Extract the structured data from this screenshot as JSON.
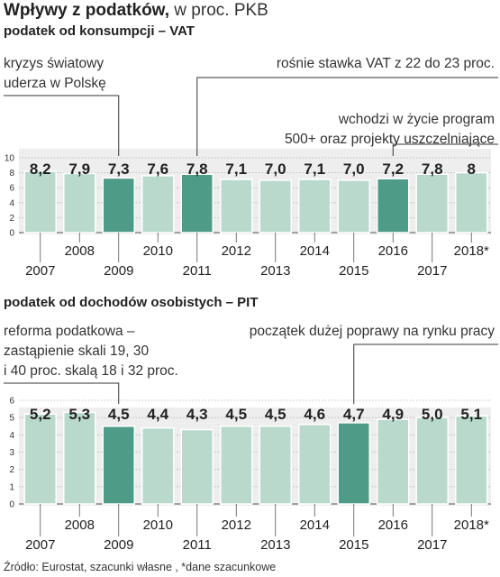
{
  "title_bold": "Wpływy z podatków,",
  "title_light": " w proc. PKB",
  "source": "Źródło: Eurostat, szacunki własne , *dane szacunkowe",
  "colors": {
    "bar": "#b8d9cc",
    "highlight": "#4e9c88",
    "band": "#eeeeee",
    "grid": "#b0b0b0",
    "text": "#222222"
  },
  "chart_data": [
    {
      "type": "bar",
      "title": "podatek od konsumpcji – VAT",
      "categories": [
        "2007",
        "2008",
        "2009",
        "2010",
        "2011",
        "2012",
        "2013",
        "2014",
        "2015",
        "2016",
        "2017",
        "2018*"
      ],
      "values": [
        8.2,
        7.9,
        7.3,
        7.6,
        7.8,
        7.1,
        7.0,
        7.1,
        7.0,
        7.2,
        7.8,
        8.0
      ],
      "value_labels": [
        "8,2",
        "7,9",
        "7,3",
        "7,6",
        "7,8",
        "7,1",
        "7,0",
        "7,1",
        "7,0",
        "7,2",
        "7,8",
        "8"
      ],
      "highlight": [
        "2009",
        "2011",
        "2016"
      ],
      "ylim": [
        0,
        10
      ],
      "yticks": [
        0,
        2,
        4,
        6,
        8,
        10
      ],
      "grid": true,
      "annotations": [
        {
          "text": "kryzys światowy\nuderza w Polskę",
          "category": "2009"
        },
        {
          "text": "rośnie stawka VAT z 22 do 23 proc.",
          "category": "2011"
        },
        {
          "text": "wchodzi w życie program\n500+ oraz projekty uszczelniające",
          "category": "2016"
        }
      ]
    },
    {
      "type": "bar",
      "title": "podatek od dochodów osobistych – PIT",
      "categories": [
        "2007",
        "2008",
        "2009",
        "2010",
        "2011",
        "2012",
        "2013",
        "2014",
        "2015",
        "2016",
        "2017",
        "2018*"
      ],
      "values": [
        5.2,
        5.3,
        4.5,
        4.4,
        4.3,
        4.5,
        4.5,
        4.6,
        4.7,
        4.9,
        5.0,
        5.1
      ],
      "value_labels": [
        "5,2",
        "5,3",
        "4,5",
        "4,4",
        "4,3",
        "4,5",
        "4,5",
        "4,6",
        "4,7",
        "4,9",
        "5,0",
        "5,1"
      ],
      "highlight": [
        "2009",
        "2015"
      ],
      "ylim": [
        0,
        6
      ],
      "yticks": [
        0,
        1,
        2,
        3,
        4,
        5,
        6
      ],
      "grid": true,
      "annotations": [
        {
          "text": "reforma podatkowa –\nzastąpienie skali 19, 30\ni 40 proc. skalą 18 i 32 proc.",
          "category": "2009"
        },
        {
          "text": "początek dużej poprawy na rynku pracy",
          "category": "2015"
        }
      ]
    }
  ]
}
